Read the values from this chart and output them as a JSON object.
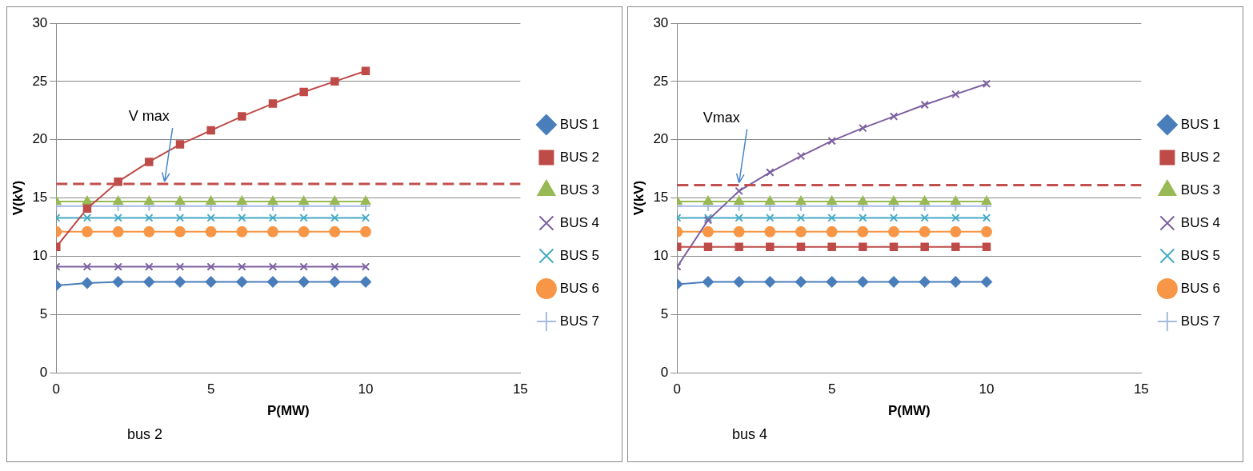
{
  "chart_data": [
    {
      "type": "line",
      "xlabel": "P(MW)",
      "ylabel": "V(kV)",
      "x": [
        0,
        1,
        2,
        3,
        4,
        5,
        6,
        7,
        8,
        9,
        10
      ],
      "xlim": [
        0,
        15
      ],
      "xticks": [
        0,
        5,
        10,
        15
      ],
      "ylim": [
        0,
        30
      ],
      "yticks": [
        0,
        5,
        10,
        15,
        20,
        25,
        30
      ],
      "grid": "y",
      "legend": "right",
      "series": [
        {
          "name": "BUS 1",
          "color": "#4a7ebb",
          "marker": "diamond",
          "values": [
            7.5,
            7.7,
            7.8,
            7.8,
            7.8,
            7.8,
            7.8,
            7.8,
            7.8,
            7.8,
            7.8
          ]
        },
        {
          "name": "BUS 2",
          "color": "#be4b48",
          "marker": "square",
          "values": [
            10.8,
            14.1,
            16.4,
            18.1,
            19.6,
            20.8,
            22.0,
            23.1,
            24.1,
            25.0,
            25.9
          ]
        },
        {
          "name": "BUS 3",
          "color": "#98b954",
          "marker": "triangle",
          "values": [
            14.7,
            14.7,
            14.7,
            14.7,
            14.7,
            14.7,
            14.7,
            14.7,
            14.7,
            14.7,
            14.7
          ]
        },
        {
          "name": "BUS 4",
          "color": "#7d60a0",
          "marker": "cross",
          "values": [
            9.1,
            9.1,
            9.1,
            9.1,
            9.1,
            9.1,
            9.1,
            9.1,
            9.1,
            9.1,
            9.1
          ]
        },
        {
          "name": "BUS 5",
          "color": "#46aac5",
          "marker": "cross",
          "values": [
            13.3,
            13.3,
            13.3,
            13.3,
            13.3,
            13.3,
            13.3,
            13.3,
            13.3,
            13.3,
            13.3
          ]
        },
        {
          "name": "BUS 6",
          "color": "#f79646",
          "marker": "circle",
          "values": [
            12.1,
            12.1,
            12.1,
            12.1,
            12.1,
            12.1,
            12.1,
            12.1,
            12.1,
            12.1,
            12.1
          ]
        },
        {
          "name": "BUS 7",
          "color": "#a7b9e3",
          "marker": "plus",
          "values": [
            14.3,
            14.3,
            14.3,
            14.3,
            14.3,
            14.3,
            14.3,
            14.3,
            14.3,
            14.3,
            14.3
          ]
        }
      ],
      "ref_lines": [
        {
          "axis": "y",
          "value": 16.2,
          "color": "#c0504d",
          "line_style": "dashed"
        }
      ],
      "annotations": [
        {
          "text": "V max",
          "x": 3.5,
          "y": 16.2
        },
        "bus 2"
      ]
    },
    {
      "type": "line",
      "xlabel": "P(MW)",
      "ylabel": "V(kV)",
      "x": [
        0,
        1,
        2,
        3,
        4,
        5,
        6,
        7,
        8,
        9,
        10
      ],
      "xlim": [
        0,
        15
      ],
      "xticks": [
        0,
        5,
        10,
        15
      ],
      "ylim": [
        0,
        30
      ],
      "yticks": [
        0,
        5,
        10,
        15,
        20,
        25,
        30
      ],
      "grid": "y",
      "legend": "right",
      "series": [
        {
          "name": "BUS 1",
          "color": "#4a7ebb",
          "marker": "diamond",
          "values": [
            7.6,
            7.8,
            7.8,
            7.8,
            7.8,
            7.8,
            7.8,
            7.8,
            7.8,
            7.8,
            7.8
          ]
        },
        {
          "name": "BUS 2",
          "color": "#be4b48",
          "marker": "square",
          "values": [
            10.8,
            10.8,
            10.8,
            10.8,
            10.8,
            10.8,
            10.8,
            10.8,
            10.8,
            10.8,
            10.8
          ]
        },
        {
          "name": "BUS 3",
          "color": "#98b954",
          "marker": "triangle",
          "values": [
            14.7,
            14.7,
            14.7,
            14.7,
            14.7,
            14.7,
            14.7,
            14.7,
            14.7,
            14.7,
            14.7
          ]
        },
        {
          "name": "BUS 4",
          "color": "#7d60a0",
          "marker": "cross",
          "values": [
            9.1,
            13.1,
            15.6,
            17.2,
            18.6,
            19.9,
            21.0,
            22.0,
            23.0,
            23.9,
            24.8
          ]
        },
        {
          "name": "BUS 5",
          "color": "#46aac5",
          "marker": "cross",
          "values": [
            13.3,
            13.3,
            13.3,
            13.3,
            13.3,
            13.3,
            13.3,
            13.3,
            13.3,
            13.3,
            13.3
          ]
        },
        {
          "name": "BUS 6",
          "color": "#f79646",
          "marker": "circle",
          "values": [
            12.1,
            12.1,
            12.1,
            12.1,
            12.1,
            12.1,
            12.1,
            12.1,
            12.1,
            12.1,
            12.1
          ]
        },
        {
          "name": "BUS 7",
          "color": "#a7b9e3",
          "marker": "plus",
          "values": [
            14.3,
            14.3,
            14.3,
            14.3,
            14.3,
            14.3,
            14.3,
            14.3,
            14.3,
            14.3,
            14.3
          ]
        }
      ],
      "ref_lines": [
        {
          "axis": "y",
          "value": 16.1,
          "color": "#c0504d",
          "line_style": "dashed"
        }
      ],
      "annotations": [
        {
          "text": "Vmax",
          "x": 2,
          "y": 16.1
        },
        "bus 4"
      ]
    }
  ]
}
